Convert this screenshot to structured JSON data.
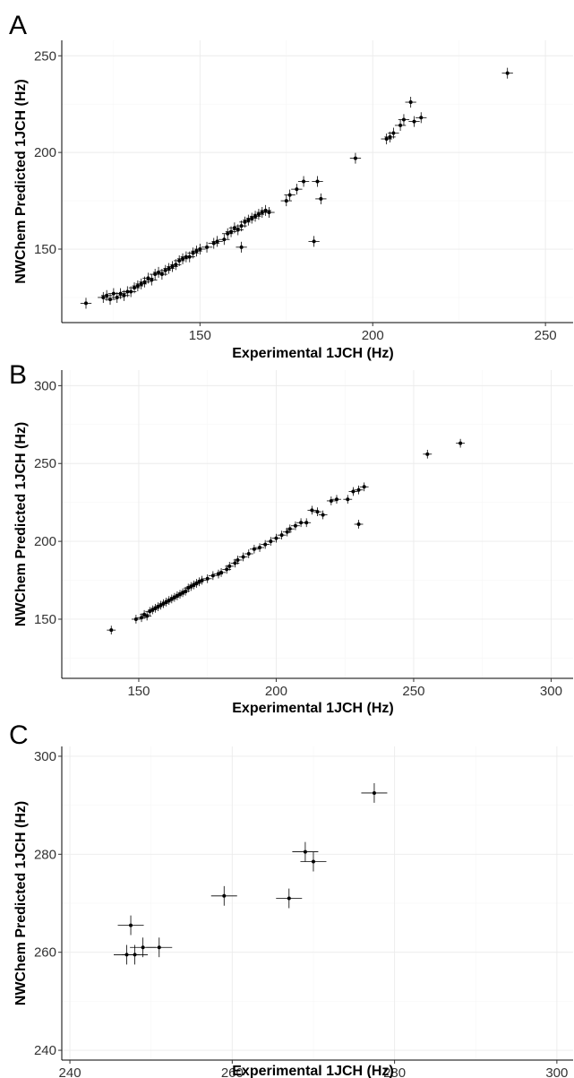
{
  "figure": {
    "x_title": "Experimental 1JCH (Hz)",
    "y_title": "NWChem Predicted 1JCH (Hz)"
  },
  "chart_data": [
    {
      "panel": "A",
      "type": "scatter",
      "xlabel": "Experimental 1JCH (Hz)",
      "ylabel": "NWChem Predicted 1JCH (Hz)",
      "xlim": [
        110,
        258
      ],
      "ylim": [
        112,
        258
      ],
      "xticks": [
        150,
        200,
        250
      ],
      "yticks": [
        150,
        200,
        250
      ],
      "xminor": [
        125,
        175,
        225
      ],
      "yminor": [
        125,
        175,
        225
      ],
      "x_err": 1.6,
      "y_err": 2.8,
      "grid": true,
      "points": [
        [
          117,
          122
        ],
        [
          122,
          125
        ],
        [
          123,
          126
        ],
        [
          124,
          124
        ],
        [
          125,
          127
        ],
        [
          126,
          125
        ],
        [
          127,
          127
        ],
        [
          128,
          126
        ],
        [
          129,
          128
        ],
        [
          130,
          128
        ],
        [
          131,
          130
        ],
        [
          132,
          131
        ],
        [
          133,
          132
        ],
        [
          134,
          133
        ],
        [
          135,
          135
        ],
        [
          136,
          134
        ],
        [
          137,
          137
        ],
        [
          138,
          138
        ],
        [
          139,
          137
        ],
        [
          140,
          139
        ],
        [
          141,
          140
        ],
        [
          142,
          141
        ],
        [
          143,
          142
        ],
        [
          144,
          144
        ],
        [
          145,
          145
        ],
        [
          146,
          146
        ],
        [
          147,
          146
        ],
        [
          148,
          148
        ],
        [
          149,
          149
        ],
        [
          150,
          150
        ],
        [
          152,
          151
        ],
        [
          154,
          153
        ],
        [
          155,
          154
        ],
        [
          157,
          155
        ],
        [
          158,
          158
        ],
        [
          159,
          159
        ],
        [
          160,
          161
        ],
        [
          161,
          160
        ],
        [
          162,
          151
        ],
        [
          162,
          162
        ],
        [
          163,
          164
        ],
        [
          164,
          165
        ],
        [
          165,
          166
        ],
        [
          166,
          167
        ],
        [
          167,
          168
        ],
        [
          168,
          169
        ],
        [
          169,
          170
        ],
        [
          170,
          169
        ],
        [
          175,
          175
        ],
        [
          176,
          178
        ],
        [
          178,
          181
        ],
        [
          180,
          185
        ],
        [
          183,
          154
        ],
        [
          184,
          185
        ],
        [
          185,
          176
        ],
        [
          195,
          197
        ],
        [
          204,
          207
        ],
        [
          205,
          208
        ],
        [
          206,
          210
        ],
        [
          208,
          214
        ],
        [
          209,
          217
        ],
        [
          211,
          226
        ],
        [
          212,
          216
        ],
        [
          214,
          218
        ],
        [
          239,
          241
        ]
      ]
    },
    {
      "panel": "B",
      "type": "scatter",
      "xlabel": "Experimental 1JCH (Hz)",
      "ylabel": "NWChem Predicted 1JCH (Hz)",
      "xlim": [
        122,
        308
      ],
      "ylim": [
        112,
        310
      ],
      "xticks": [
        150,
        200,
        250,
        300
      ],
      "yticks": [
        150,
        200,
        250,
        300
      ],
      "xminor": [
        125,
        175,
        225,
        275
      ],
      "yminor": [
        125,
        175,
        225,
        275
      ],
      "x_err": 1.6,
      "y_err": 2.8,
      "grid": true,
      "points": [
        [
          140,
          143
        ],
        [
          149,
          150
        ],
        [
          151,
          151
        ],
        [
          152,
          153
        ],
        [
          153,
          152
        ],
        [
          154,
          155
        ],
        [
          155,
          156
        ],
        [
          156,
          157
        ],
        [
          157,
          158
        ],
        [
          158,
          159
        ],
        [
          159,
          160
        ],
        [
          160,
          161
        ],
        [
          161,
          162
        ],
        [
          162,
          163
        ],
        [
          163,
          164
        ],
        [
          164,
          165
        ],
        [
          165,
          166
        ],
        [
          166,
          167
        ],
        [
          167,
          168
        ],
        [
          168,
          170
        ],
        [
          169,
          171
        ],
        [
          170,
          172
        ],
        [
          171,
          173
        ],
        [
          172,
          174
        ],
        [
          173,
          175
        ],
        [
          175,
          176
        ],
        [
          177,
          178
        ],
        [
          179,
          179
        ],
        [
          180,
          180
        ],
        [
          182,
          182
        ],
        [
          183,
          184
        ],
        [
          185,
          186
        ],
        [
          186,
          188
        ],
        [
          188,
          190
        ],
        [
          190,
          192
        ],
        [
          192,
          195
        ],
        [
          194,
          196
        ],
        [
          196,
          198
        ],
        [
          198,
          200
        ],
        [
          200,
          202
        ],
        [
          202,
          204
        ],
        [
          204,
          206
        ],
        [
          205,
          208
        ],
        [
          207,
          210
        ],
        [
          209,
          212
        ],
        [
          211,
          212
        ],
        [
          213,
          220
        ],
        [
          215,
          219
        ],
        [
          217,
          217
        ],
        [
          220,
          226
        ],
        [
          222,
          227
        ],
        [
          226,
          227
        ],
        [
          228,
          232
        ],
        [
          230,
          233
        ],
        [
          230,
          211
        ],
        [
          232,
          235
        ],
        [
          255,
          256
        ],
        [
          267,
          263
        ]
      ]
    },
    {
      "panel": "C",
      "type": "scatter",
      "xlabel": "Experimental 1JCH (Hz)",
      "ylabel": "NWChem Predicted 1JCH (Hz)",
      "xlim": [
        239,
        302
      ],
      "ylim": [
        238,
        302
      ],
      "xticks": [
        240,
        260,
        280,
        300
      ],
      "yticks": [
        240,
        260,
        280,
        300
      ],
      "xminor": [
        250,
        270,
        290
      ],
      "yminor": [
        250,
        270,
        290
      ],
      "x_err": 1.6,
      "y_err": 2.0,
      "grid": true,
      "points": [
        [
          247,
          259.5
        ],
        [
          247.5,
          265.5
        ],
        [
          248,
          259.5
        ],
        [
          249,
          261
        ],
        [
          251,
          261
        ],
        [
          259,
          271.5
        ],
        [
          267,
          271
        ],
        [
          269,
          280.5
        ],
        [
          270,
          278.5
        ],
        [
          277.5,
          292.5
        ]
      ]
    }
  ]
}
